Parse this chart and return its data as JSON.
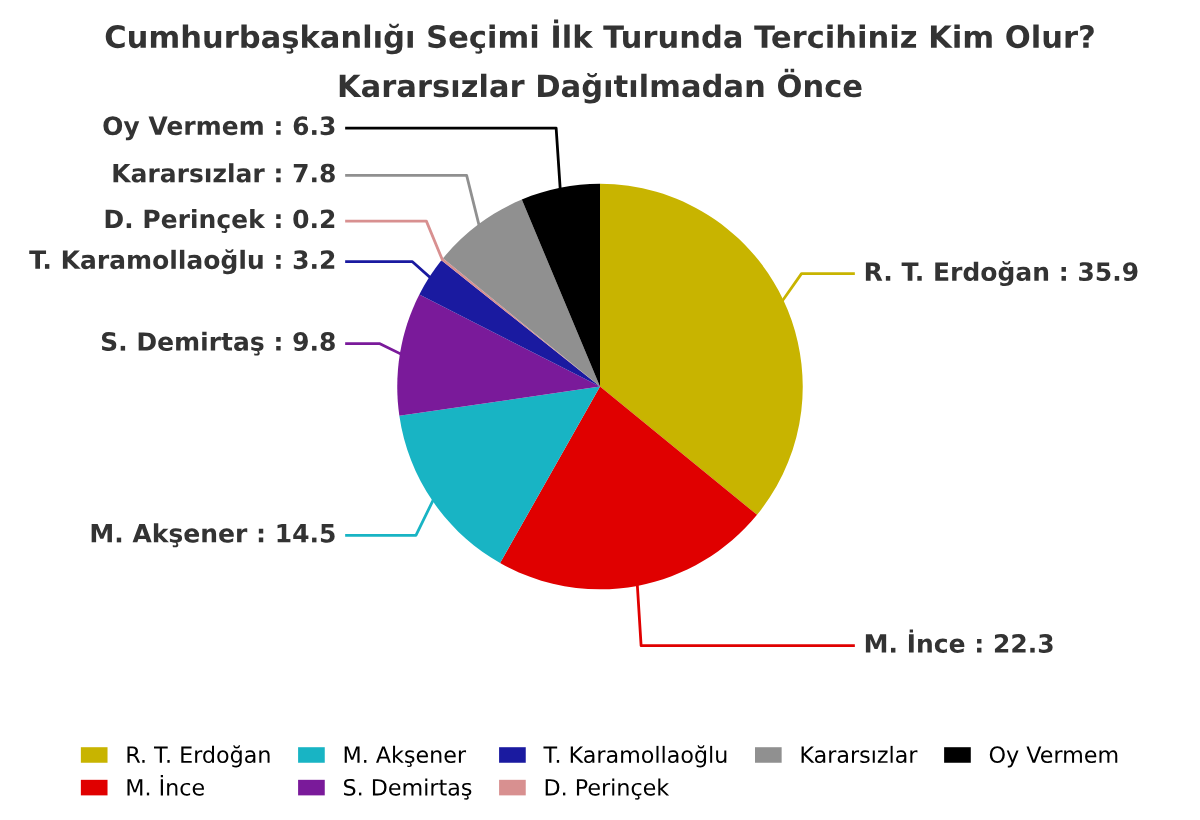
{
  "chart_data": {
    "type": "pie",
    "title": "Cumhurbaşkanlığı Seçimi İlk Turunda Tercihiniz Kim Olur?",
    "subtitle": "Kararsızlar Dağıtılmadan Önce",
    "categories": [
      "R. T. Erdoğan",
      "M. İnce",
      "M. Akşener",
      "S. Demirtaş",
      "T. Karamollaoğlu",
      "D. Perinçek",
      "Kararsızlar",
      "Oy Vermem"
    ],
    "values": [
      35.9,
      22.3,
      14.5,
      9.8,
      3.2,
      0.2,
      7.8,
      6.3
    ],
    "colors": [
      "#c8b400",
      "#e00000",
      "#18b4c4",
      "#7a1a9a",
      "#1a1aa0",
      "#d89090",
      "#909090",
      "#000000"
    ],
    "value_labels": [
      ": 35.9",
      ": 22.3",
      ": 14.5",
      ": 9.8",
      ": 3.2",
      ": 0.2",
      ": 7.8",
      ": 6.3"
    ],
    "legend": "bottom"
  }
}
